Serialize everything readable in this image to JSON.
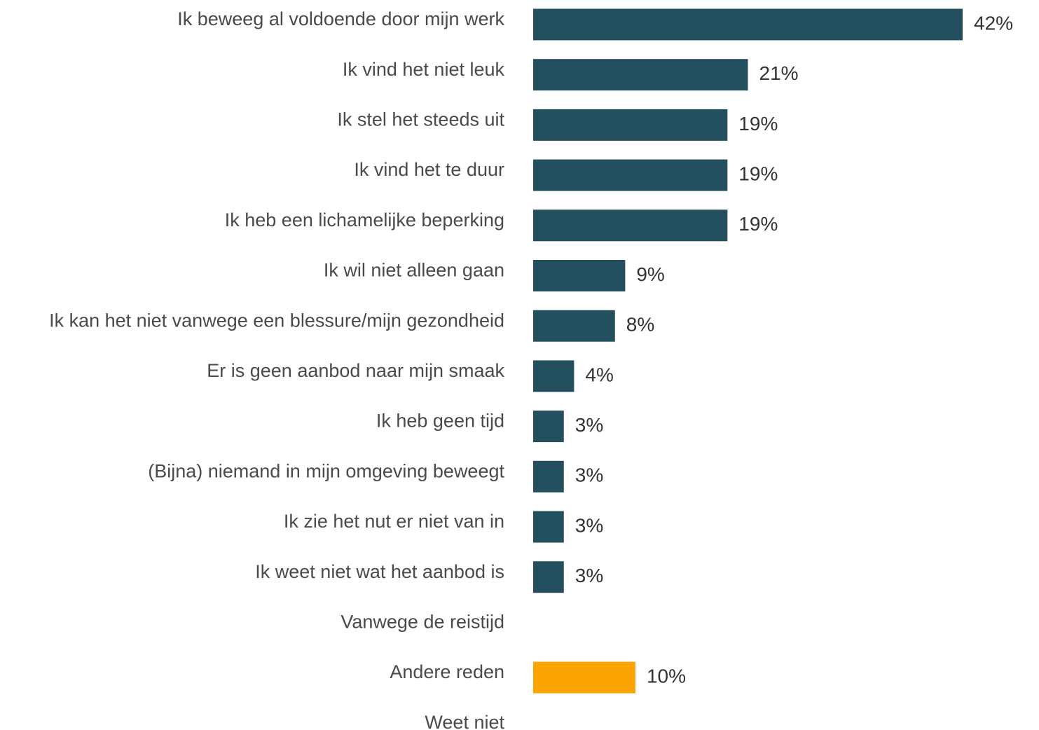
{
  "chart_data": {
    "type": "bar",
    "orientation": "horizontal",
    "title": "",
    "xlabel": "",
    "ylabel": "",
    "xlim": [
      0,
      42
    ],
    "grid": false,
    "legend": "none",
    "categories": [
      "Ik beweeg al voldoende door mijn werk",
      "Ik vind het niet leuk",
      "Ik stel het steeds uit",
      "Ik vind het te duur",
      "Ik heb een lichamelijke beperking",
      "Ik wil niet alleen gaan",
      "Ik kan het niet vanwege een blessure/mijn gezondheid",
      "Er is geen aanbod naar mijn smaak",
      "Ik heb geen tijd",
      "(Bijna) niemand in mijn omgeving beweegt",
      "Ik zie het nut er niet van in",
      "Ik weet niet wat het aanbod is",
      "Vanwege de reistijd",
      "Andere reden",
      "Weet niet"
    ],
    "values": [
      42,
      21,
      19,
      19,
      19,
      9,
      8,
      4,
      3,
      3,
      3,
      3,
      null,
      10,
      null
    ],
    "value_labels": [
      "42%",
      "21%",
      "19%",
      "19%",
      "19%",
      "9%",
      "8%",
      "4%",
      "3%",
      "3%",
      "3%",
      "3%",
      "",
      "10%",
      ""
    ],
    "colors": [
      "#244f5e",
      "#244f5e",
      "#244f5e",
      "#244f5e",
      "#244f5e",
      "#244f5e",
      "#244f5e",
      "#244f5e",
      "#244f5e",
      "#244f5e",
      "#244f5e",
      "#244f5e",
      "#244f5e",
      "#fca402",
      "#244f5e"
    ]
  }
}
